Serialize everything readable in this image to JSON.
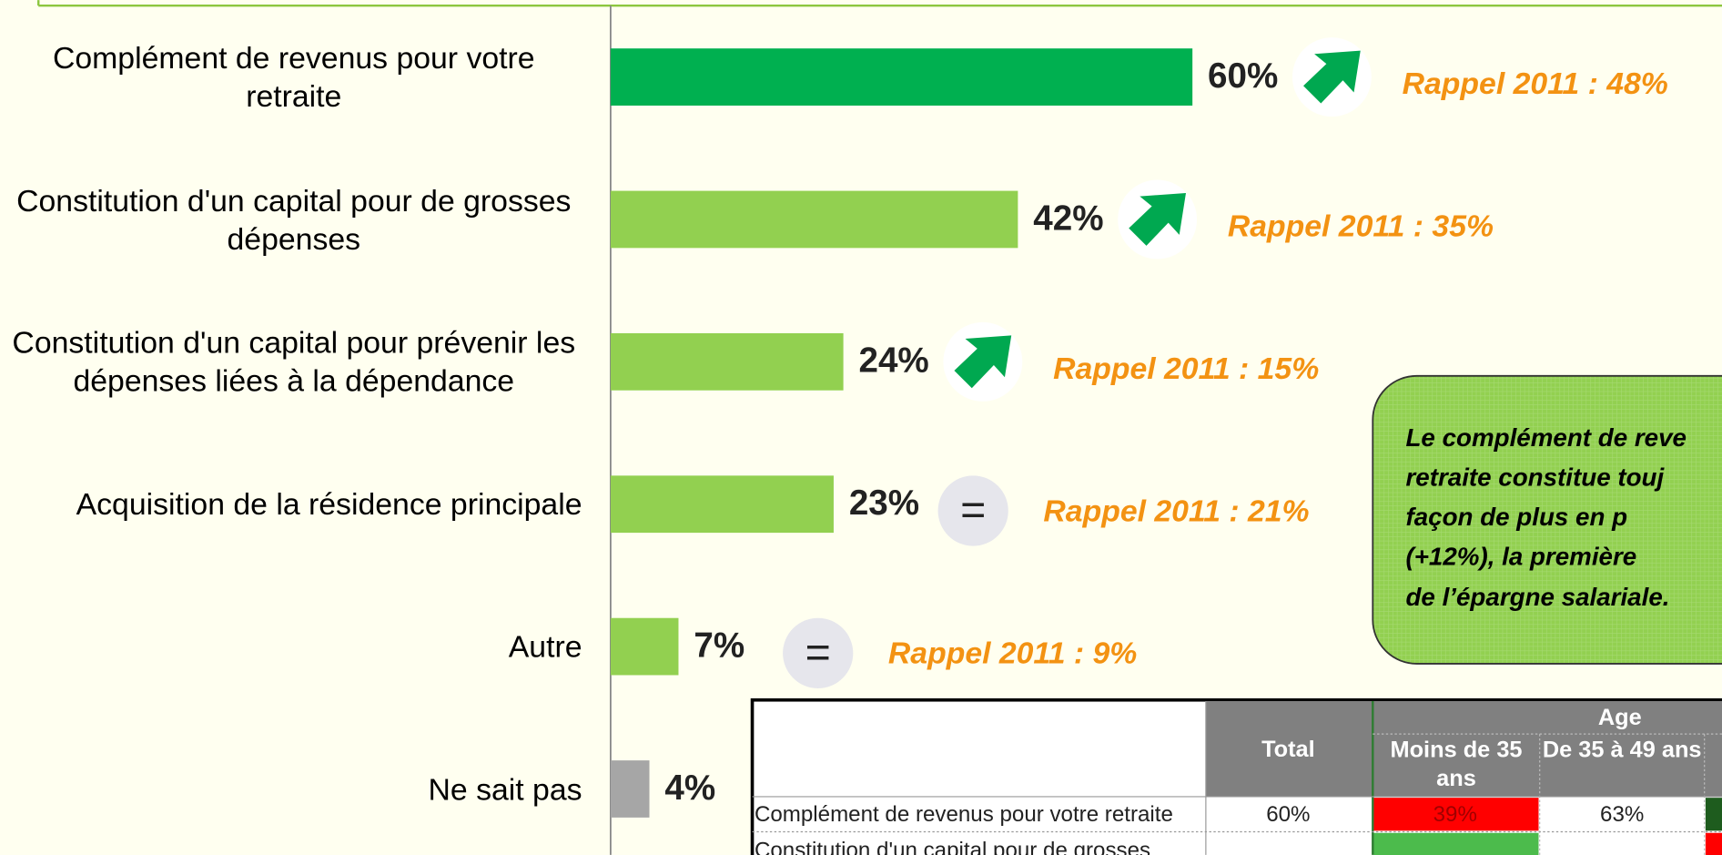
{
  "chart_data": {
    "type": "bar",
    "orientation": "horizontal",
    "categories": [
      "Complément de revenus pour votre retraite",
      "Constitution d'un capital pour de grosses dépenses",
      "Constitution d'un capital pour prévenir les dépenses liées à la dépendance",
      "Acquisition de la résidence principale",
      "Autre",
      "Ne sait pas"
    ],
    "values": [
      60,
      42,
      24,
      23,
      7,
      4
    ],
    "value_labels": [
      "60%",
      "42%",
      "24%",
      "23%",
      "7%",
      "4%"
    ],
    "colors": [
      "#00b050",
      "#92d050",
      "#92d050",
      "#92d050",
      "#92d050",
      "#a6a6a6"
    ],
    "xlim": [
      0,
      100
    ],
    "trend": [
      "up",
      "up",
      "up",
      "=",
      "=",
      null
    ],
    "rappel": [
      "Rappel 2011 : 48%",
      "Rappel 2011 : 35%",
      "Rappel 2011 : 15%",
      "Rappel 2011 : 21%",
      "Rappel 2011 : 9%",
      null
    ]
  },
  "callout": {
    "lines": [
      "Le complément de reve",
      "retraite constitue touj",
      "façon de plus en p",
      "(+12%),  la première",
      "de l’épargne salariale."
    ]
  },
  "table": {
    "columns": [
      "Total"
    ],
    "group": "Age",
    "subcolumns": [
      "Moins de 35 ans",
      "De 35 à 49 ans"
    ],
    "rows": [
      [
        "Complément de revenus pour votre retraite",
        "60%",
        "39%",
        "63%"
      ],
      [
        "Constitution d'un capital pour de grosses"
      ]
    ]
  }
}
